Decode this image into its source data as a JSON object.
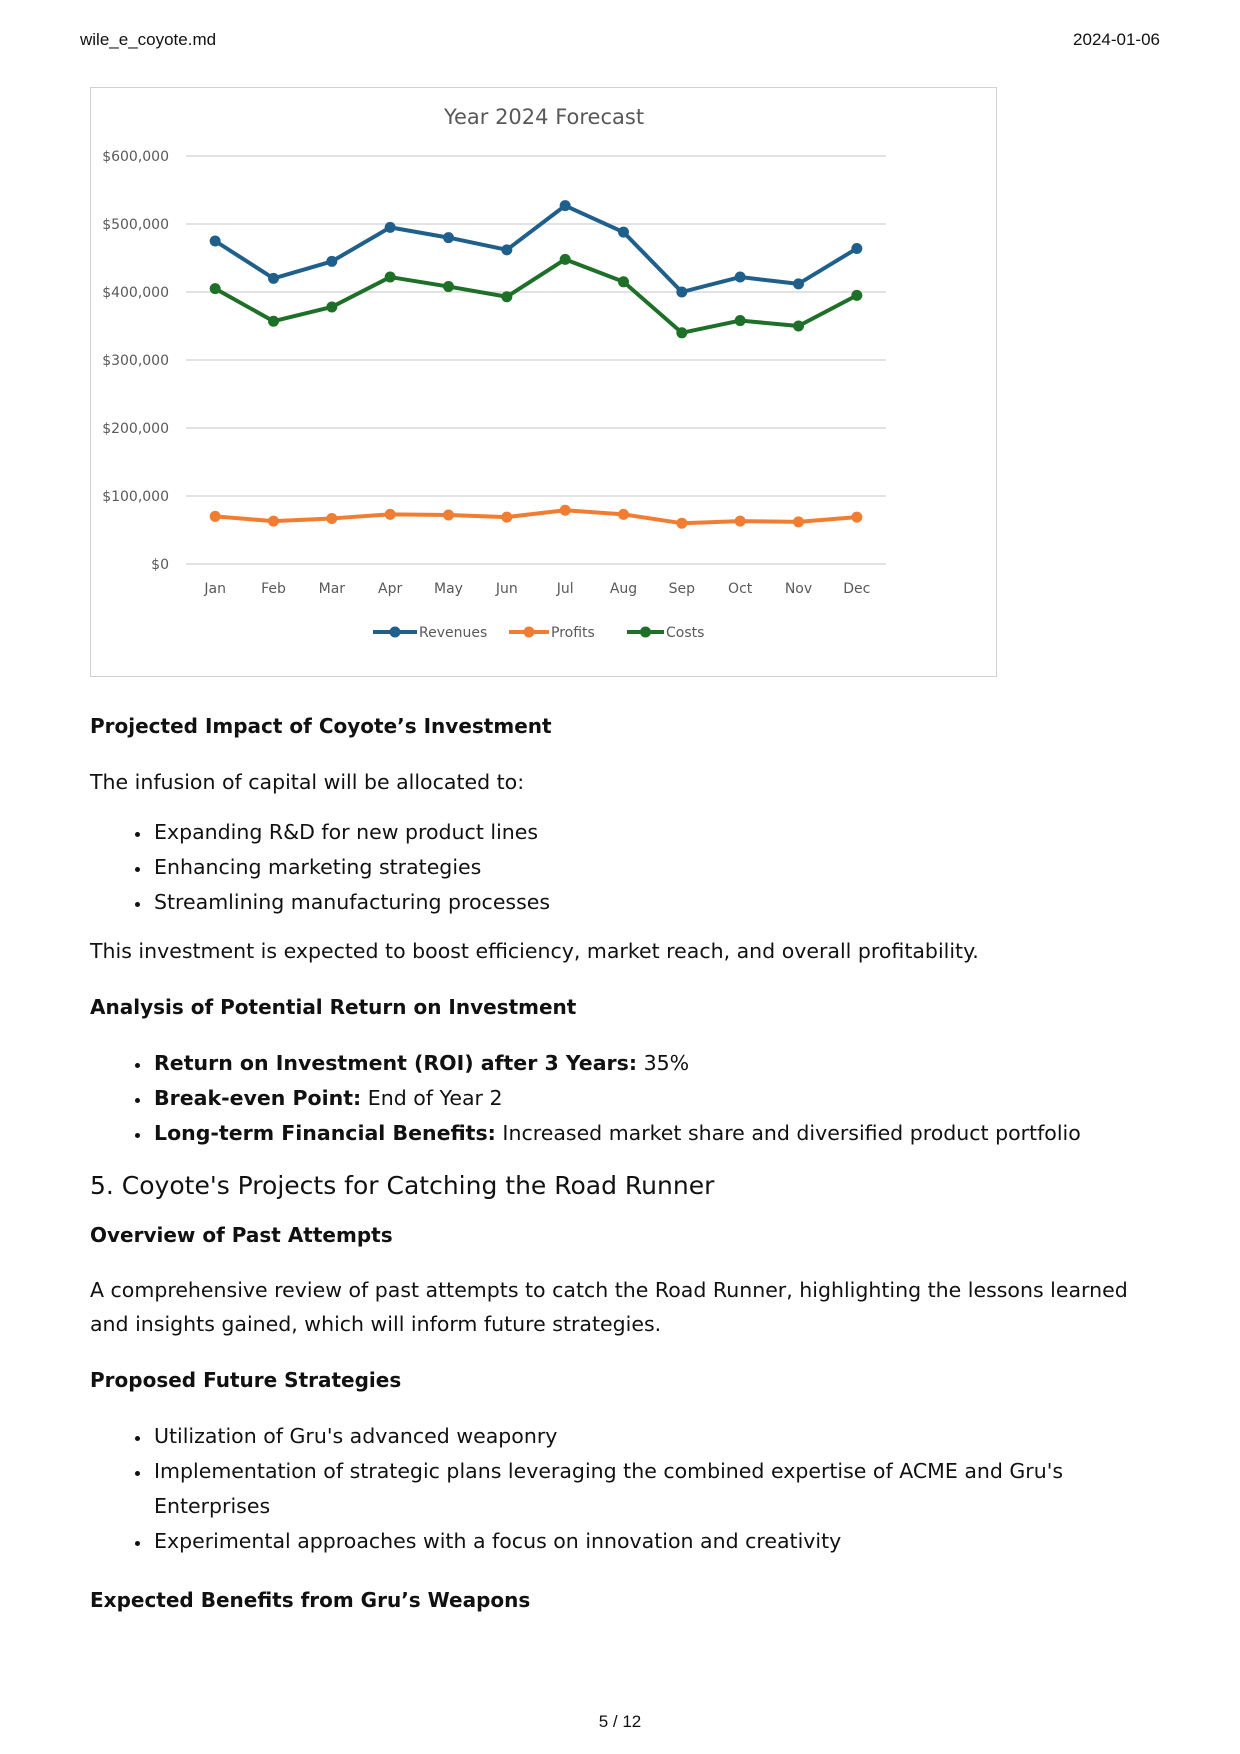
{
  "header": {
    "filename": "wile_e_coyote.md",
    "date": "2024-01-06"
  },
  "chart_data": {
    "type": "line",
    "title": "Year 2024 Forecast",
    "categories": [
      "Jan",
      "Feb",
      "Mar",
      "Apr",
      "May",
      "Jun",
      "Jul",
      "Aug",
      "Sep",
      "Oct",
      "Nov",
      "Dec"
    ],
    "ylim": [
      0,
      600000
    ],
    "yticks": [
      0,
      100000,
      200000,
      300000,
      400000,
      500000,
      600000
    ],
    "ytick_labels": [
      "$0",
      "$100,000",
      "$200,000",
      "$300,000",
      "$400,000",
      "$500,000",
      "$600,000"
    ],
    "grid": true,
    "legend_position": "bottom",
    "series": [
      {
        "name": "Revenues",
        "color": "#1f5f8b",
        "values": [
          475000,
          420000,
          445000,
          495000,
          480000,
          462000,
          527000,
          488000,
          400000,
          422000,
          412000,
          464000
        ]
      },
      {
        "name": "Profits",
        "color": "#f07d32",
        "values": [
          70000,
          63000,
          67000,
          73000,
          72000,
          69000,
          79000,
          73000,
          60000,
          63000,
          62000,
          69000
        ]
      },
      {
        "name": "Costs",
        "color": "#1e6f28",
        "values": [
          405000,
          357000,
          378000,
          422000,
          408000,
          393000,
          448000,
          415000,
          340000,
          358000,
          350000,
          395000
        ]
      }
    ]
  },
  "section_impact": {
    "heading": "Projected Impact of Coyote’s Investment",
    "intro": "The infusion of capital will be allocated to:",
    "items": [
      "Expanding R&D for new product lines",
      "Enhancing marketing strategies",
      "Streamlining manufacturing processes"
    ],
    "summary": "This investment is expected to boost efficiency, market reach, and overall profitability."
  },
  "section_roi": {
    "heading": "Analysis of Potential Return on Investment",
    "items": [
      {
        "label": "Return on Investment (ROI) after 3 Years:",
        "value": "35%"
      },
      {
        "label": "Break-even Point:",
        "value": "End of Year 2"
      },
      {
        "label": "Long-term Financial Benefits:",
        "value": "Increased market share and diversified product portfolio"
      }
    ]
  },
  "section5": {
    "title": "5. Coyote's Projects for Catching the Road Runner"
  },
  "section_past": {
    "heading": "Overview of Past Attempts",
    "text": "A comprehensive review of past attempts to catch the Road Runner, highlighting the lessons learned and insights gained, which will inform future strategies."
  },
  "section_future": {
    "heading": "Proposed Future Strategies",
    "items": [
      "Utilization of Gru's advanced weaponry",
      "Implementation of strategic plans leveraging the combined expertise of ACME and Gru's Enterprises",
      "Experimental approaches with a focus on innovation and creativity"
    ]
  },
  "section_benefits": {
    "heading": "Expected Benefits from Gru’s Weapons"
  },
  "footer": {
    "page": "5 / 12"
  }
}
